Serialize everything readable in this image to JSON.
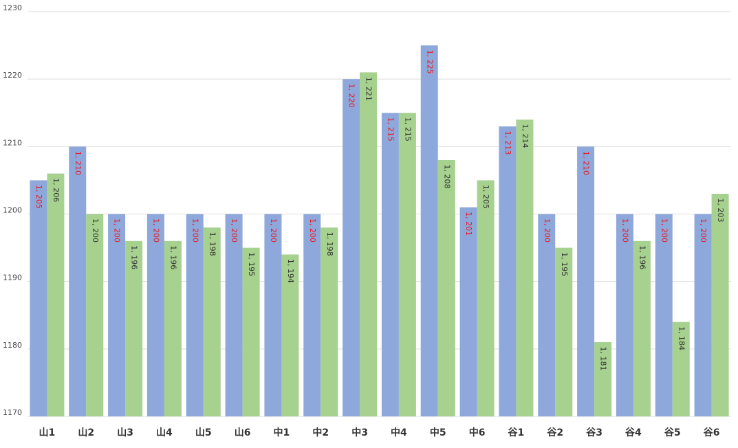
{
  "chart_data": {
    "type": "bar",
    "categories": [
      "山1",
      "山2",
      "山3",
      "山4",
      "山5",
      "山6",
      "中1",
      "中2",
      "中3",
      "中4",
      "中5",
      "中6",
      "谷1",
      "谷2",
      "谷3",
      "谷4",
      "谷5",
      "谷6"
    ],
    "series": [
      {
        "values": [
          1205,
          1210,
          1200,
          1200,
          1200,
          1200,
          1200,
          1200,
          1220,
          1215,
          1225,
          1201,
          1213,
          1200,
          1210,
          1200,
          1200,
          1200
        ],
        "labels": [
          "1, 205",
          "1, 210",
          "1, 200",
          "1, 200",
          "1, 200",
          "1, 200",
          "1, 200",
          "1, 200",
          "1, 220",
          "1, 215",
          "1, 225",
          "1, 201",
          "1, 213",
          "1, 200",
          "1, 210",
          "1, 200",
          "1, 200",
          "1, 200"
        ],
        "color": "#8FA8DC",
        "label_color": "#E8171B"
      },
      {
        "values": [
          1206,
          1200,
          1196,
          1196,
          1198,
          1195,
          1194,
          1198,
          1221,
          1215,
          1208,
          1205,
          1214,
          1195,
          1181,
          1196,
          1184,
          1203
        ],
        "labels": [
          "1, 206",
          "1, 200",
          "1, 196",
          "1, 196",
          "1, 198",
          "1, 195",
          "1, 194",
          "1, 198",
          "1, 221",
          "1, 215",
          "1, 208",
          "1, 205",
          "1, 214",
          "1, 195",
          "1, 181",
          "1, 196",
          "1, 184",
          "1, 203"
        ],
        "color": "#A6D18F",
        "label_color": "#333333"
      }
    ],
    "ylim": [
      1170,
      1230
    ],
    "yticks": [
      "1170",
      "1180",
      "1190",
      "1200",
      "1210",
      "1220",
      "1230"
    ],
    "ytick_values": [
      1170,
      1180,
      1190,
      1200,
      1210,
      1220,
      1230
    ],
    "grid": true,
    "grid_color": "#DDDDDD",
    "title": "",
    "xlabel": "",
    "ylabel": ""
  }
}
